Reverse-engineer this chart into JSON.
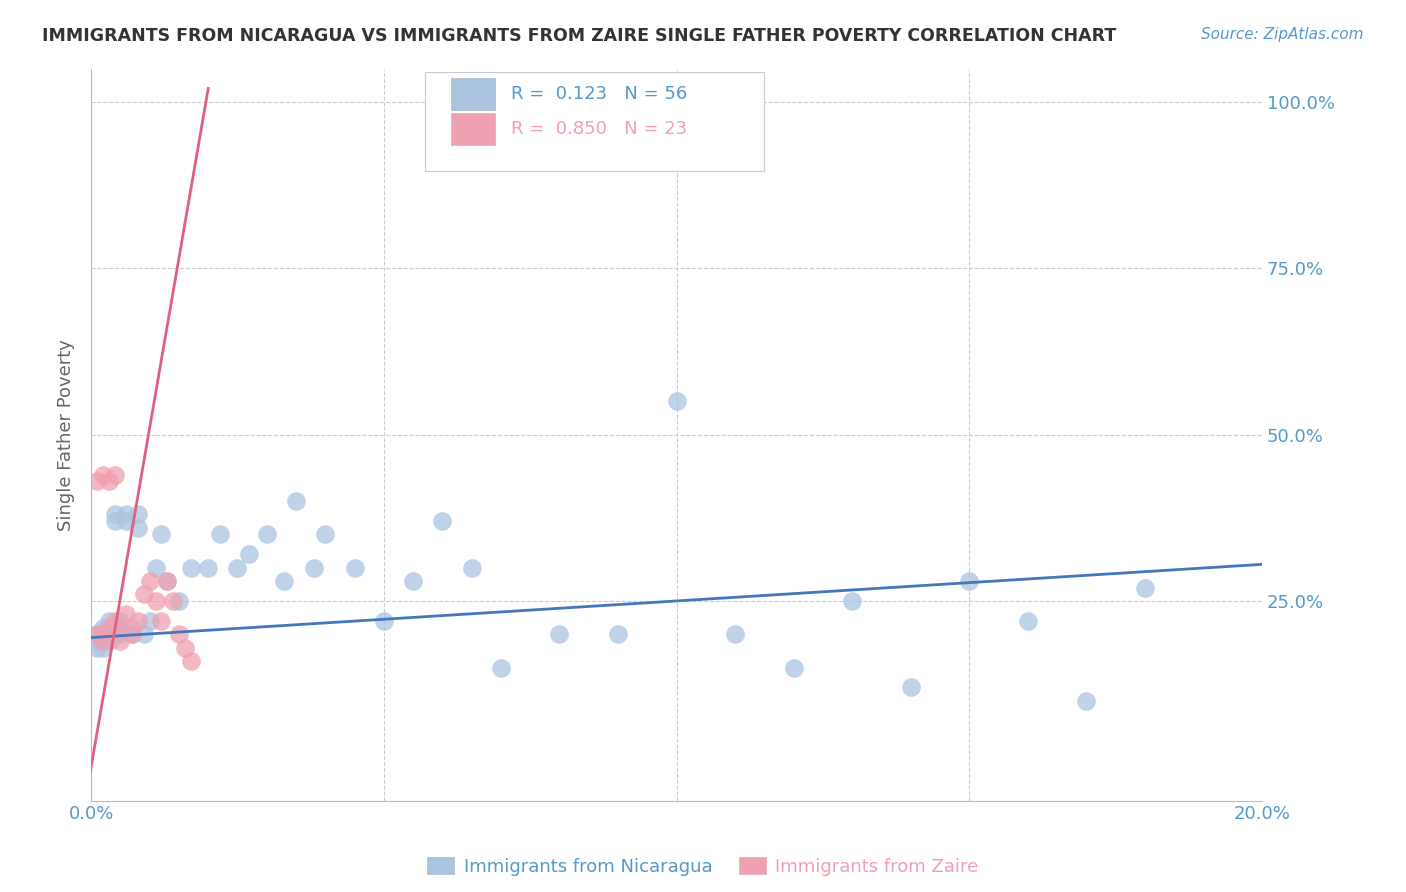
{
  "title": "IMMIGRANTS FROM NICARAGUA VS IMMIGRANTS FROM ZAIRE SINGLE FATHER POVERTY CORRELATION CHART",
  "source": "Source: ZipAtlas.com",
  "ylabel_left": "Single Father Poverty",
  "xlim": [
    0.0,
    0.2
  ],
  "ylim": [
    -0.05,
    1.05
  ],
  "nicaragua_color": "#aac4e0",
  "zaire_color": "#f0a0b0",
  "nicaragua_line_color": "#4477bb",
  "zaire_line_color": "#e06080",
  "legend_nicaragua_label": "Immigrants from Nicaragua",
  "legend_zaire_label": "Immigrants from Zaire",
  "r_nicaragua": 0.123,
  "n_nicaragua": 56,
  "r_zaire": 0.85,
  "n_zaire": 23,
  "background_color": "#ffffff",
  "grid_color": "#cccccc",
  "axis_label_color": "#5599cc",
  "title_color": "#333333",
  "nicaragua_x": [
    0.001,
    0.001,
    0.001,
    0.002,
    0.002,
    0.002,
    0.002,
    0.003,
    0.003,
    0.003,
    0.003,
    0.004,
    0.004,
    0.004,
    0.005,
    0.005,
    0.005,
    0.006,
    0.006,
    0.007,
    0.007,
    0.008,
    0.008,
    0.009,
    0.01,
    0.011,
    0.012,
    0.013,
    0.015,
    0.017,
    0.02,
    0.022,
    0.025,
    0.027,
    0.03,
    0.033,
    0.035,
    0.038,
    0.04,
    0.045,
    0.05,
    0.055,
    0.06,
    0.065,
    0.07,
    0.08,
    0.09,
    0.1,
    0.11,
    0.12,
    0.13,
    0.14,
    0.15,
    0.16,
    0.17,
    0.18
  ],
  "nicaragua_y": [
    0.2,
    0.19,
    0.18,
    0.21,
    0.2,
    0.19,
    0.18,
    0.22,
    0.2,
    0.19,
    0.21,
    0.2,
    0.38,
    0.37,
    0.21,
    0.22,
    0.2,
    0.38,
    0.37,
    0.2,
    0.21,
    0.38,
    0.36,
    0.2,
    0.22,
    0.3,
    0.35,
    0.28,
    0.25,
    0.3,
    0.3,
    0.35,
    0.3,
    0.32,
    0.35,
    0.28,
    0.4,
    0.3,
    0.35,
    0.3,
    0.22,
    0.28,
    0.37,
    0.3,
    0.15,
    0.2,
    0.2,
    0.55,
    0.2,
    0.15,
    0.25,
    0.12,
    0.28,
    0.22,
    0.1,
    0.27
  ],
  "zaire_x": [
    0.001,
    0.001,
    0.002,
    0.002,
    0.002,
    0.003,
    0.003,
    0.004,
    0.004,
    0.005,
    0.005,
    0.006,
    0.007,
    0.008,
    0.009,
    0.01,
    0.011,
    0.012,
    0.013,
    0.014,
    0.015,
    0.016,
    0.017
  ],
  "zaire_y": [
    0.2,
    0.43,
    0.19,
    0.44,
    0.2,
    0.43,
    0.21,
    0.44,
    0.22,
    0.21,
    0.19,
    0.23,
    0.2,
    0.22,
    0.26,
    0.28,
    0.25,
    0.22,
    0.28,
    0.25,
    0.2,
    0.18,
    0.16
  ],
  "nicaragua_line_x": [
    0.0,
    0.2
  ],
  "nicaragua_line_y": [
    0.195,
    0.305
  ],
  "zaire_line_x": [
    -0.001,
    0.02
  ],
  "zaire_line_y": [
    -0.05,
    1.02
  ]
}
